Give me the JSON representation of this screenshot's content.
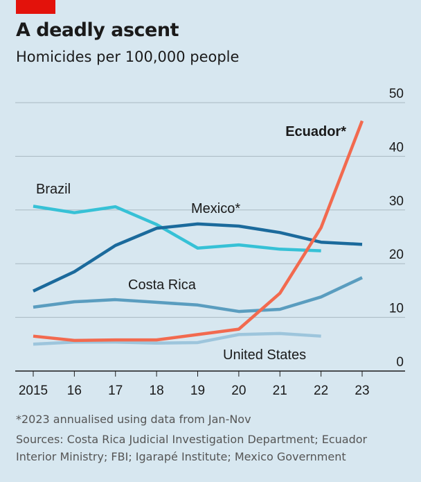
{
  "title": "A deadly ascent",
  "subtitle": "Homicides per 100,000 people",
  "footnote": "*2023 annualised using data from Jan-Nov",
  "sources": "Sources: Costa Rica Judicial Investigation Department; Ecuador Interior Ministry; FBI; Igarapé Institute; Mexico Government",
  "colors": {
    "background": "#d7e7f0",
    "brand_red": "#e3120b"
  },
  "chart_data": {
    "type": "line",
    "title": "A deadly ascent",
    "subtitle": "Homicides per 100,000 people",
    "x": [
      2015,
      2016,
      2017,
      2018,
      2019,
      2020,
      2021,
      2022,
      2023
    ],
    "x_tick_labels": [
      "2015",
      "16",
      "17",
      "18",
      "19",
      "20",
      "21",
      "22",
      "23"
    ],
    "ylim": [
      0,
      50
    ],
    "y_ticks": [
      0,
      10,
      20,
      30,
      40,
      50
    ],
    "y_axis_position": "right",
    "grid": true,
    "legend": "inline labels",
    "series": [
      {
        "name": "Brazil",
        "color": "#36c1d6",
        "values": [
          30.7,
          29.5,
          30.6,
          27.3,
          22.9,
          23.5,
          22.7,
          22.4,
          null
        ]
      },
      {
        "name": "Mexico*",
        "color": "#1b6a9c",
        "values": [
          14.9,
          18.5,
          23.4,
          26.6,
          27.4,
          27.0,
          25.8,
          24.0,
          23.6
        ]
      },
      {
        "name": "Costa Rica",
        "color": "#5a9dbf",
        "values": [
          11.9,
          12.9,
          13.3,
          12.8,
          12.3,
          11.1,
          11.5,
          13.8,
          17.4
        ]
      },
      {
        "name": "United States",
        "color": "#9dc5dc",
        "values": [
          5.0,
          5.4,
          5.4,
          5.2,
          5.3,
          6.8,
          7.0,
          6.5,
          null
        ]
      },
      {
        "name": "Ecuador*",
        "color": "#f26a4f",
        "bold": true,
        "values": [
          6.5,
          5.7,
          5.8,
          5.8,
          6.8,
          7.8,
          14.5,
          26.7,
          46.6
        ]
      }
    ]
  }
}
